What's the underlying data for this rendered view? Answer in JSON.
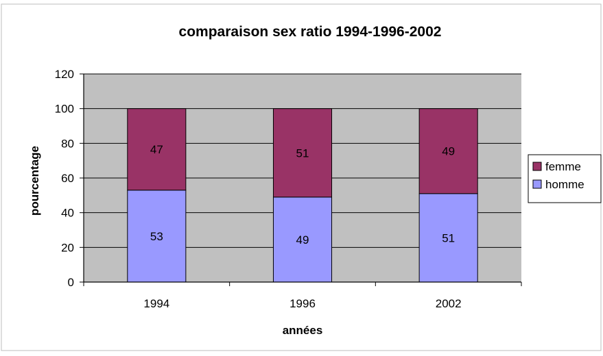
{
  "chart_data": {
    "type": "bar",
    "stacked": true,
    "title": "comparaison sex ratio 1994-1996-2002",
    "xlabel": "années",
    "ylabel": "pourcentage",
    "categories": [
      "1994",
      "1996",
      "2002"
    ],
    "ylim": [
      0,
      120
    ],
    "yticks": [
      0,
      20,
      40,
      60,
      80,
      100,
      120
    ],
    "grid": true,
    "legend_position": "right",
    "series": [
      {
        "name": "homme",
        "values": [
          53,
          49,
          51
        ],
        "color": "#9999ff"
      },
      {
        "name": "femme",
        "values": [
          47,
          51,
          49
        ],
        "color": "#993366"
      }
    ],
    "legend_order": [
      "femme",
      "homme"
    ],
    "plot_background": "#c0c0c0",
    "gridline_color": "#000000"
  }
}
